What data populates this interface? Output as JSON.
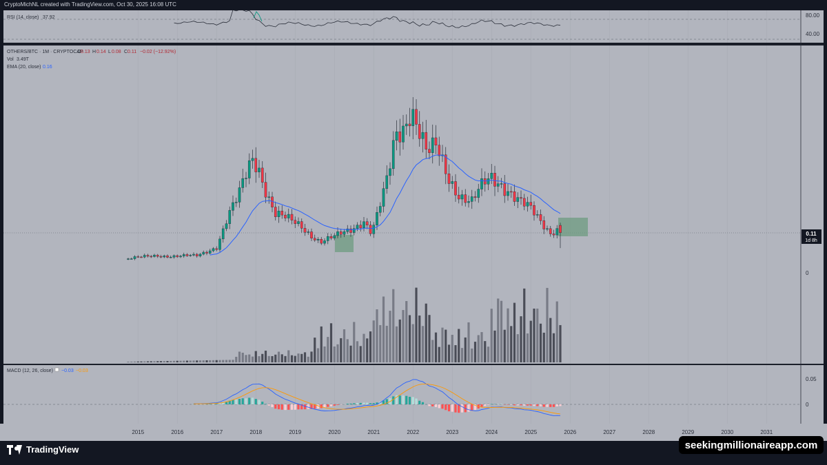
{
  "header": {
    "credit": "CryptoMichNL created with TradingView.com, Oct 30, 2025 16:08 UTC"
  },
  "rsi": {
    "label": "RSI (14, close)",
    "value": "37.92",
    "scale_top": "80.00",
    "scale_mid": "40.00",
    "line_color": "#2a2e39",
    "overbought_color": "#089981"
  },
  "main": {
    "symbol_line": "OTHERS/BTC · 1M · CRYPTOCAP",
    "o_label": "O",
    "o_value": "0.13",
    "h_label": "H",
    "h_value": "0.14",
    "l_label": "L",
    "l_value": "0.08",
    "c_label": "C",
    "c_value": "0.11",
    "change": "−0.02 (−12.92%)",
    "vol_label": "Vol",
    "vol_value": "3.49T",
    "ema_label": "EMA (20, close)",
    "ema_value": "0.16",
    "price_tag": "0.11",
    "countdown": "1d 8h",
    "zero_label": "0",
    "up_color": "#089981",
    "down_color": "#f23645",
    "ema_color": "#2962ff",
    "highlight_color": "#6a9a7c"
  },
  "macd": {
    "label": "MACD (12, 26, close)",
    "macd_value": "−0.03",
    "signal_value": "−0.03",
    "scale_top": "0.05",
    "scale_zero": "0",
    "macd_color": "#2962ff",
    "signal_color": "#ff9800"
  },
  "time_axis": [
    "2015",
    "2016",
    "2017",
    "2018",
    "2019",
    "2020",
    "2021",
    "2022",
    "2023",
    "2024",
    "2025",
    "2026",
    "2027",
    "2028",
    "2029",
    "2030",
    "2031"
  ],
  "footer": {
    "brand": "TradingView",
    "watermark": "seekingmillionaireapp.com"
  },
  "chart_data": {
    "type": "candlestick",
    "title": "OTHERS/BTC · 1M · CRYPTOCAP",
    "x_unit": "monthly candles, 2014-10 to 2025-10",
    "series": [
      {
        "name": "OTHERS/BTC",
        "type": "candlestick",
        "ohlc": [],
        "last_close": 0.11
      },
      {
        "name": "EMA (20, close)",
        "type": "line",
        "last": 0.16
      },
      {
        "name": "Vol",
        "type": "bar",
        "last": "3.49T"
      }
    ],
    "indicators": {
      "rsi": {
        "period": 14,
        "last": 37.92
      },
      "macd": {
        "fast": 12,
        "slow": 26,
        "macd_last": -0.03,
        "signal_last": -0.03
      }
    },
    "highlights": [
      "2019-08 to 2020-01",
      "2025-03 to 2025-10"
    ]
  }
}
